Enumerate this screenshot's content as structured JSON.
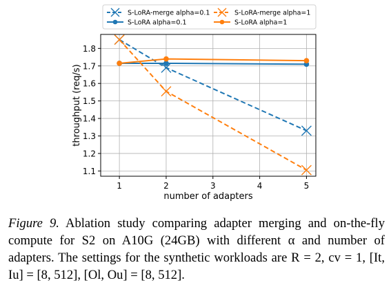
{
  "chart_data": {
    "type": "line",
    "x": [
      1,
      2,
      5
    ],
    "xlabel": "number of adapters",
    "ylabel": "throughput (req/s)",
    "xticks": [
      "1",
      "2",
      "3",
      "4",
      "5"
    ],
    "yticks": [
      "1.1",
      "1.2",
      "1.3",
      "1.4",
      "1.5",
      "1.6",
      "1.7",
      "1.8"
    ],
    "xlim": [
      0.6,
      5.2
    ],
    "ylim": [
      1.07,
      1.88
    ],
    "grid": true,
    "legend_position": "top, above plot (2 columns)",
    "series": [
      {
        "name": "S-LoRA-merge alpha=0.1",
        "values": [
          1.85,
          1.69,
          1.33
        ],
        "color": "#1f77b4",
        "style": "dashed",
        "marker": "x"
      },
      {
        "name": "S-LoRA alpha=0.1",
        "values": [
          1.715,
          1.715,
          1.71
        ],
        "color": "#1f77b4",
        "style": "solid",
        "marker": "o"
      },
      {
        "name": "S-LoRA-merge alpha=1",
        "values": [
          1.85,
          1.555,
          1.105
        ],
        "color": "#ff7f0e",
        "style": "dashed",
        "marker": "x"
      },
      {
        "name": "S-LoRA alpha=1",
        "values": [
          1.715,
          1.74,
          1.73
        ],
        "color": "#ff7f0e",
        "style": "solid",
        "marker": "o"
      }
    ]
  },
  "caption": {
    "figure_label": "Figure 9.",
    "text": " Ablation study comparing adapter merging and on-the-fly compute for S2 on A10G (24GB) with different α and number of adapters. The settings for the synthetic workloads are R = 2, cv = 1, [It, Iu] = [8, 512], [Ol, Ou] = [8, 512]."
  }
}
